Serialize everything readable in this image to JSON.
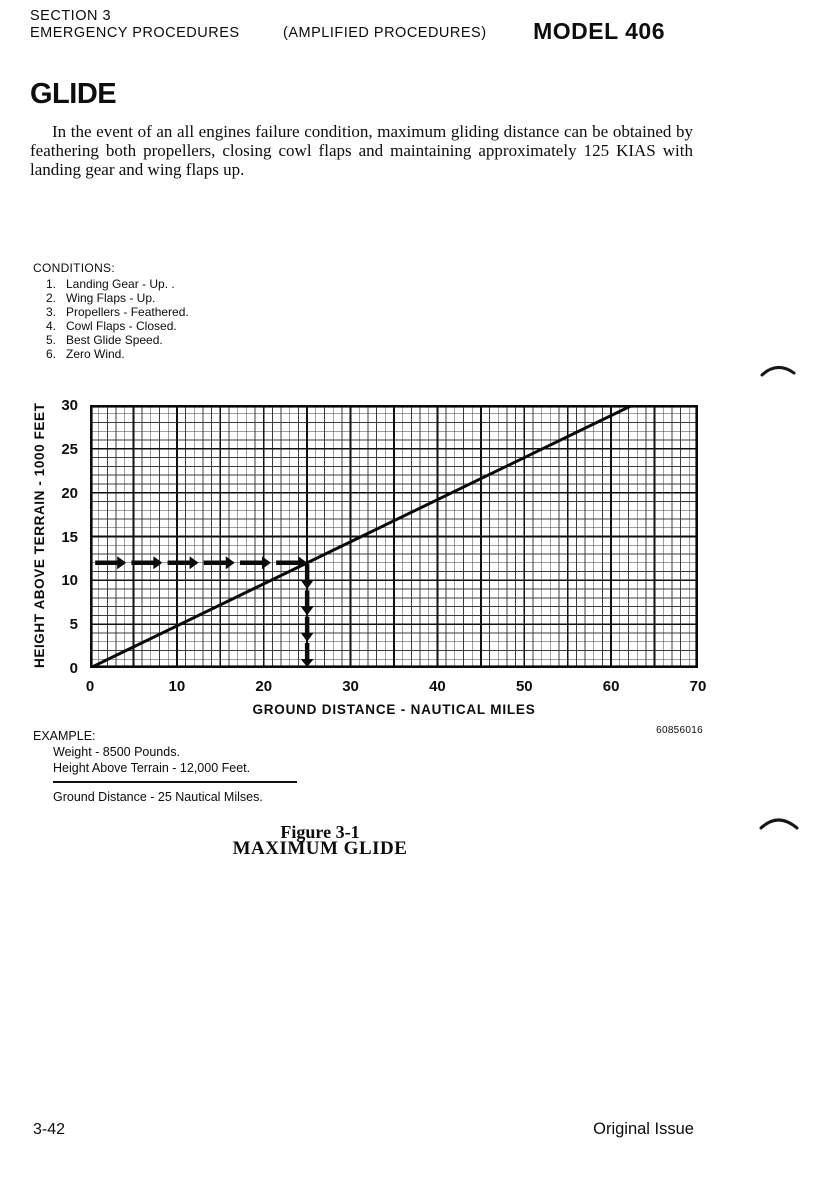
{
  "page": {
    "header": {
      "section_line1": "SECTION 3",
      "section_line2": "EMERGENCY PROCEDURES",
      "amplified": "(AMPLIFIED PROCEDURES)",
      "model": "MODEL 406"
    },
    "title": "GLIDE",
    "intro_paragraph": "In the event of an all engines failure condition, maximum gliding distance can be obtained by feathering both propellers, closing cowl flaps and maintaining approximately 125 KIAS with landing gear and wing flaps up.",
    "conditions": {
      "heading": "CONDITIONS:",
      "items": [
        {
          "num": "1.",
          "text": "Landing Gear - Up. ."
        },
        {
          "num": "2.",
          "text": "Wing Flaps - Up."
        },
        {
          "num": "3.",
          "text": "Propellers - Feathered."
        },
        {
          "num": "4.",
          "text": "Cowl Flaps - Closed."
        },
        {
          "num": "5.",
          "text": "Best Glide Speed."
        },
        {
          "num": "6.",
          "text": "Zero Wind."
        }
      ]
    },
    "example": {
      "heading": "EXAMPLE:",
      "lines": [
        "Weight - 8500 Pounds.",
        "Height Above Terrain - 12,000 Feet."
      ],
      "result": "Ground Distance - 25 Nautical Milses."
    },
    "figure": {
      "number_label": "Figure 3-1",
      "title": "MAXIMUM GLIDE"
    },
    "footer": {
      "page_number": "3-42",
      "issue": "Original Issue"
    }
  },
  "chart_data": {
    "type": "line",
    "title": "MAXIMUM GLIDE",
    "xlabel": "GROUND DISTANCE - NAUTICAL MILES",
    "ylabel": "HEIGHT ABOVE TERRAIN - 1000 FEET",
    "xlim": [
      0,
      70
    ],
    "ylim": [
      0,
      30
    ],
    "x_ticks": [
      0,
      10,
      20,
      30,
      40,
      50,
      60,
      70
    ],
    "y_ticks": [
      0,
      5,
      10,
      15,
      20,
      25,
      30
    ],
    "grid": {
      "on": true,
      "minor_step": 1,
      "major_step": 5
    },
    "series": [
      {
        "name": "maximum-glide-line",
        "points": [
          [
            0,
            0
          ],
          [
            62.5,
            30
          ]
        ]
      }
    ],
    "example_path": {
      "height_1000ft": 12,
      "ground_distance_nm": 25,
      "horizontal_arrows": 6,
      "vertical_arrows": 4
    },
    "drawing_number": "60856016"
  }
}
